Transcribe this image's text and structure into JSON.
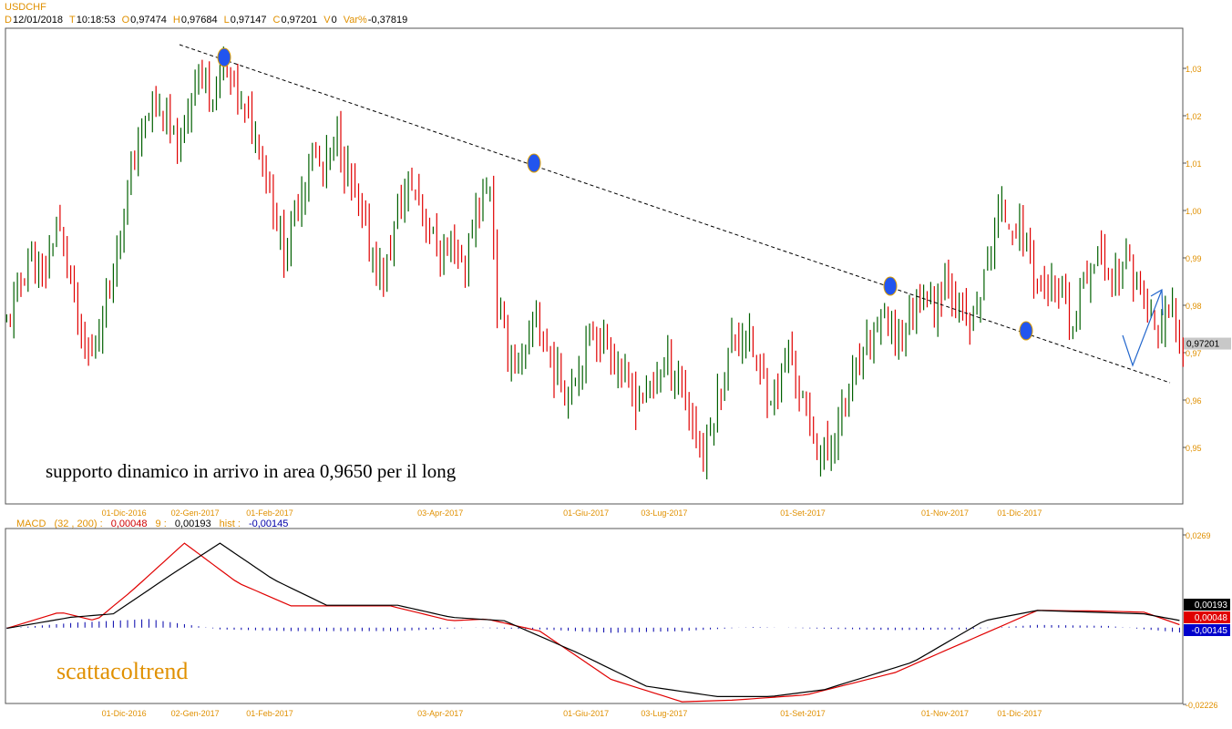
{
  "header": {
    "symbol": "USDCHF",
    "items": [
      {
        "k": "D",
        "v": "12/01/2018"
      },
      {
        "k": "T",
        "v": "10:18:53"
      },
      {
        "k": "O",
        "v": "0,97474"
      },
      {
        "k": "H",
        "v": "0,97684"
      },
      {
        "k": "L",
        "v": "0,97147"
      },
      {
        "k": "C",
        "v": "0,97201"
      },
      {
        "k": "V",
        "v": "0"
      },
      {
        "k": "Var%",
        "v": "-0,37819"
      }
    ]
  },
  "annotations": {
    "main_text": "supporto dinamico in arrivo in area 0,9650 per il long",
    "brand": "scattacoltrend"
  },
  "macd_header": {
    "name": "MACD",
    "params": "(32 , 200) :",
    "macd_value": "0,00048",
    "signal_label": "9 :",
    "signal_value": "0,00193",
    "hist_label": "hist :",
    "hist_value": "-0,00145"
  },
  "colors": {
    "up": "#006000",
    "down": "#e00000",
    "axis_label": "#e09000",
    "macd_line": "#e00000",
    "signal_line": "#000000",
    "histogram": "#0000aa",
    "ellipse": "#2255ee",
    "arrow": "#2266cc"
  },
  "chart_data": [
    {
      "type": "candlestick",
      "title": "USDCHF",
      "ylim": [
        0.94,
        1.04
      ],
      "yticks": [
        "1,03",
        "1,02",
        "1,01",
        "1,00",
        "0,99",
        "0,98",
        "0,97",
        "0,96",
        "0,95"
      ],
      "ytick_values": [
        1.03,
        1.02,
        1.01,
        1.0,
        0.99,
        0.98,
        0.97,
        0.96,
        0.95
      ],
      "xtick_labels": [
        "01-Dic-2016",
        "02-Gen-2017",
        "01-Feb-2017",
        "03-Apr-2017",
        "01-Giu-2017",
        "03-Lug-2017",
        "01-Set-2017",
        "01-Nov-2017",
        "01-Dic-2017"
      ],
      "last_price_label": "0,97201",
      "close_path": [
        [
          0,
          0.976
        ],
        [
          6,
          0.99
        ],
        [
          10,
          0.985
        ],
        [
          14,
          0.997
        ],
        [
          17,
          0.99
        ],
        [
          21,
          0.971
        ],
        [
          24,
          0.969
        ],
        [
          28,
          0.982
        ],
        [
          33,
          1.0
        ],
        [
          37,
          1.015
        ],
        [
          41,
          1.022
        ],
        [
          45,
          1.018
        ],
        [
          49,
          1.012
        ],
        [
          53,
          1.03
        ],
        [
          57,
          1.025
        ],
        [
          61,
          1.03
        ],
        [
          63,
          1.028
        ],
        [
          67,
          1.02
        ],
        [
          71,
          1.015
        ],
        [
          74,
          1.005
        ],
        [
          78,
          0.99
        ],
        [
          82,
          1.002
        ],
        [
          86,
          1.012
        ],
        [
          89,
          1.008
        ],
        [
          93,
          1.015
        ],
        [
          98,
          1.003
        ],
        [
          102,
          0.992
        ],
        [
          106,
          0.985
        ],
        [
          110,
          1.0
        ],
        [
          114,
          1.006
        ],
        [
          118,
          0.998
        ],
        [
          122,
          0.99
        ],
        [
          126,
          0.993
        ],
        [
          129,
          0.988
        ],
        [
          132,
          1.0
        ],
        [
          136,
          1.005
        ],
        [
          138,
          0.98
        ],
        [
          141,
          0.97
        ],
        [
          145,
          0.967
        ],
        [
          149,
          0.978
        ],
        [
          153,
          0.968
        ],
        [
          157,
          0.962
        ],
        [
          161,
          0.967
        ],
        [
          165,
          0.975
        ],
        [
          169,
          0.972
        ],
        [
          173,
          0.965
        ],
        [
          177,
          0.96
        ],
        [
          181,
          0.963
        ],
        [
          185,
          0.968
        ],
        [
          189,
          0.965
        ],
        [
          193,
          0.955
        ],
        [
          196,
          0.948
        ],
        [
          200,
          0.96
        ],
        [
          204,
          0.972
        ],
        [
          208,
          0.975
        ],
        [
          212,
          0.965
        ],
        [
          216,
          0.96
        ],
        [
          220,
          0.97
        ],
        [
          224,
          0.96
        ],
        [
          228,
          0.95
        ],
        [
          231,
          0.948
        ],
        [
          235,
          0.958
        ],
        [
          239,
          0.965
        ],
        [
          243,
          0.972
        ],
        [
          246,
          0.978
        ],
        [
          250,
          0.972
        ],
        [
          253,
          0.975
        ],
        [
          257,
          0.983
        ],
        [
          261,
          0.98
        ],
        [
          265,
          0.987
        ],
        [
          268,
          0.978
        ],
        [
          271,
          0.975
        ],
        [
          275,
          0.985
        ],
        [
          279,
          1.0
        ],
        [
          283,
          0.997
        ],
        [
          287,
          0.993
        ],
        [
          290,
          0.985
        ],
        [
          294,
          0.983
        ],
        [
          298,
          0.98
        ],
        [
          300,
          0.975
        ],
        [
          303,
          0.985
        ],
        [
          307,
          0.992
        ],
        [
          311,
          0.985
        ],
        [
          315,
          0.99
        ],
        [
          319,
          0.982
        ],
        [
          323,
          0.975
        ],
        [
          325,
          0.975
        ],
        [
          328,
          0.978
        ],
        [
          331,
          0.971
        ]
      ],
      "trendline": [
        [
          40,
          1.035
        ],
        [
          334,
          0.964
        ]
      ],
      "ellipses": [
        [
          47,
          1.032
        ],
        [
          118,
          1.01
        ],
        [
          198,
          0.984
        ],
        [
          228,
          0.974
        ]
      ],
      "arrow": [
        [
          336,
          0.978
        ],
        [
          335,
          0.967
        ],
        [
          347,
          0.983
        ]
      ]
    },
    {
      "type": "line",
      "title": "MACD",
      "series": [
        {
          "name": "MACD",
          "values": [
            [
              0,
              -0.0002
            ],
            [
              15,
              0.0045
            ],
            [
              25,
              0.002
            ],
            [
              35,
              0.0105
            ],
            [
              50,
              0.0245
            ],
            [
              65,
              0.013
            ],
            [
              80,
              0.0063
            ],
            [
              108,
              0.0063
            ],
            [
              125,
              0.002
            ],
            [
              135,
              0.0025
            ],
            [
              150,
              -0.001
            ],
            [
              170,
              -0.015
            ],
            [
              190,
              -0.0215
            ],
            [
              205,
              -0.021
            ],
            [
              225,
              -0.0195
            ],
            [
              250,
              -0.013
            ],
            [
              270,
              -0.004
            ],
            [
              290,
              0.005
            ],
            [
              308,
              0.0048
            ],
            [
              320,
              0.0045
            ],
            [
              331,
              0.0005
            ]
          ]
        },
        {
          "name": "Signal",
          "values": [
            [
              0,
              -0.0002
            ],
            [
              18,
              0.003
            ],
            [
              30,
              0.004
            ],
            [
              45,
              0.0145
            ],
            [
              60,
              0.0245
            ],
            [
              75,
              0.014
            ],
            [
              90,
              0.0065
            ],
            [
              110,
              0.0065
            ],
            [
              125,
              0.003
            ],
            [
              140,
              0.002
            ],
            [
              160,
              -0.007
            ],
            [
              180,
              -0.017
            ],
            [
              200,
              -0.02
            ],
            [
              215,
              -0.02
            ],
            [
              230,
              -0.018
            ],
            [
              255,
              -0.01
            ],
            [
              275,
              0.002
            ],
            [
              290,
              0.005
            ],
            [
              305,
              0.0045
            ],
            [
              320,
              0.004
            ],
            [
              331,
              0.0019
            ]
          ]
        }
      ],
      "histogram": [
        [
          0,
          -0.0002
        ],
        [
          20,
          0.0015
        ],
        [
          40,
          0.0025
        ],
        [
          60,
          -0.0005
        ],
        [
          80,
          -0.001
        ],
        [
          110,
          -0.001
        ],
        [
          130,
          0.0
        ],
        [
          150,
          -0.0005
        ],
        [
          170,
          -0.0015
        ],
        [
          190,
          -0.001
        ],
        [
          210,
          0.0002
        ],
        [
          230,
          -0.0003
        ],
        [
          250,
          -0.0007
        ],
        [
          270,
          -0.0005
        ],
        [
          290,
          0.0008
        ],
        [
          310,
          0.0005
        ],
        [
          331,
          -0.0015
        ]
      ],
      "ylim": [
        -0.02226,
        0.0269
      ],
      "yticks": [
        "0,0269",
        "-0,02226"
      ],
      "ytick_values": [
        0.0269,
        -0.02226
      ],
      "value_labels": [
        "0,00193",
        "0,00048",
        "-0,00145"
      ],
      "xtick_labels": [
        "01-Dic-2016",
        "02-Gen-2017",
        "01-Feb-2017",
        "03-Apr-2017",
        "01-Giu-2017",
        "03-Lug-2017",
        "01-Set-2017",
        "01-Nov-2017",
        "01-Dic-2017"
      ]
    }
  ]
}
